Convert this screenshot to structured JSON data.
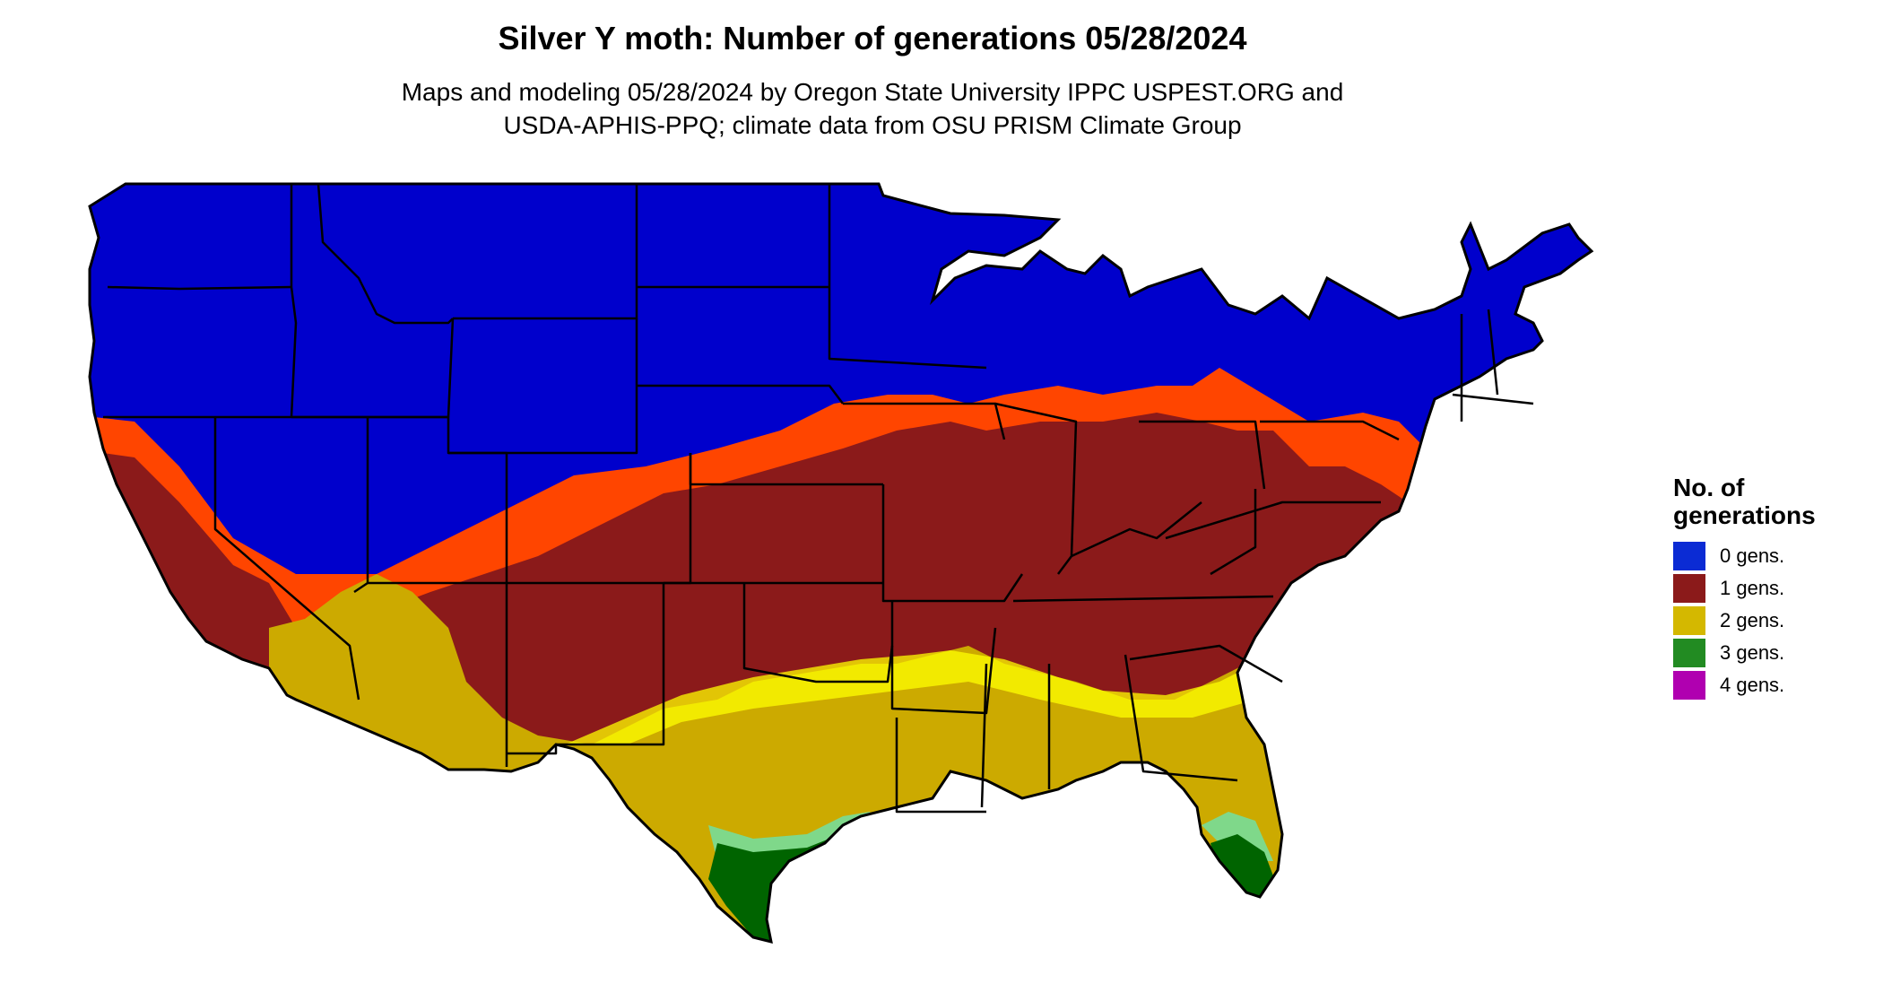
{
  "title": "Silver Y moth: Number of generations 05/28/2024",
  "subtitle_line1": "Maps and modeling 05/28/2024 by Oregon State University IPPC USPEST.ORG and",
  "subtitle_line2": "USDA-APHIS-PPQ; climate data from OSU PRISM Climate Group",
  "legend": {
    "title_line1": "No. of",
    "title_line2": "generations",
    "items": [
      {
        "label": "0 gens.",
        "color": "#0b2bd4"
      },
      {
        "label": "1 gens.",
        "color": "#8b1a1a"
      },
      {
        "label": "2 gens.",
        "color": "#d4b800"
      },
      {
        "label": "3 gens.",
        "color": "#228b22"
      },
      {
        "label": "4 gens.",
        "color": "#b000b0"
      }
    ]
  },
  "map_colors": {
    "zero": "#0000cc",
    "transition_orange": "#ff4500",
    "one": "#8b1a1a",
    "two": "#ccaa00",
    "two_light": "#ffff00",
    "three": "#006400",
    "three_light": "#7fd88a",
    "four": "#cc00cc"
  }
}
